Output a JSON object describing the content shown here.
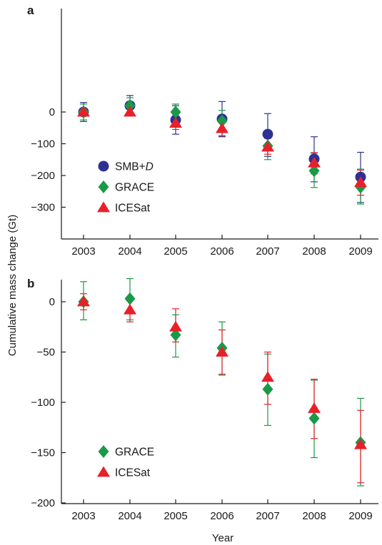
{
  "figure": {
    "ylabel": "Cumulative mass change (Gt)",
    "xlabel": "Year"
  },
  "colors": {
    "smb": "#2e3192",
    "grace": "#1a9a48",
    "icesat": "#e8202a"
  },
  "chart_data": [
    {
      "type": "scatter",
      "panel_label": "a",
      "x": [
        2003,
        2004,
        2005,
        2006,
        2007,
        2008,
        2009
      ],
      "xticks": [
        "2003",
        "2004",
        "2005",
        "2006",
        "2007",
        "2008",
        "2009"
      ],
      "ylim": [
        -300,
        70
      ],
      "yticks": [
        0,
        -100,
        -200,
        -300
      ],
      "ytick_labels": [
        "0",
        "−100",
        "−200",
        "−300"
      ],
      "legend_placement": "center-left",
      "series": [
        {
          "name": "SMB+D",
          "name_main": "SMB+",
          "name_italic": "D",
          "marker": "circle",
          "color_key": "smb",
          "values": [
            0,
            20,
            -25,
            -22,
            -70,
            -148,
            -205
          ],
          "err_low": [
            -30,
            -12,
            -70,
            -78,
            -140,
            -220,
            -285
          ],
          "err_high": [
            30,
            52,
            20,
            33,
            -5,
            -78,
            -127
          ]
        },
        {
          "name": "GRACE",
          "marker": "diamond",
          "color_key": "grace",
          "values": [
            0,
            20,
            0,
            -28,
            -107,
            -185,
            -237
          ],
          "err_low": [
            -25,
            -5,
            -25,
            -75,
            -150,
            -238,
            -290
          ],
          "err_high": [
            25,
            45,
            25,
            5,
            -60,
            -130,
            -180
          ]
        },
        {
          "name": "ICESat",
          "marker": "triangle",
          "color_key": "icesat",
          "values": [
            0,
            0,
            -35,
            -52,
            -110,
            -160,
            -222
          ],
          "err_low": [
            -10,
            -12,
            -55,
            -75,
            -133,
            -195,
            -262
          ],
          "err_high": [
            10,
            12,
            -12,
            -25,
            -83,
            -128,
            -183
          ]
        }
      ]
    },
    {
      "type": "scatter",
      "panel_label": "b",
      "x": [
        2003,
        2004,
        2005,
        2006,
        2007,
        2008,
        2009
      ],
      "xticks": [
        "2003",
        "2004",
        "2005",
        "2006",
        "2007",
        "2008",
        "2009"
      ],
      "ylim": [
        -200,
        22
      ],
      "yticks": [
        0,
        -50,
        -100,
        -150,
        -200
      ],
      "ytick_labels": [
        "0",
        "−50",
        "−100",
        "−150",
        "−200"
      ],
      "legend_placement": "bottom-left",
      "series": [
        {
          "name": "GRACE",
          "marker": "diamond",
          "color_key": "grace",
          "values": [
            0,
            3,
            -33,
            -46,
            -87,
            -116,
            -140
          ],
          "err_low": [
            -18,
            -18,
            -55,
            -73,
            -123,
            -155,
            -183
          ],
          "err_high": [
            20,
            23,
            -13,
            -20,
            -52,
            -78,
            -96
          ]
        },
        {
          "name": "ICESat",
          "marker": "triangle",
          "color_key": "icesat",
          "values": [
            0,
            -8,
            -25,
            -50,
            -75,
            -106,
            -142
          ],
          "err_low": [
            -8,
            -20,
            -40,
            -72,
            -102,
            -136,
            -180
          ],
          "err_high": [
            8,
            5,
            -7,
            -28,
            -50,
            -77,
            -108
          ]
        }
      ]
    }
  ]
}
